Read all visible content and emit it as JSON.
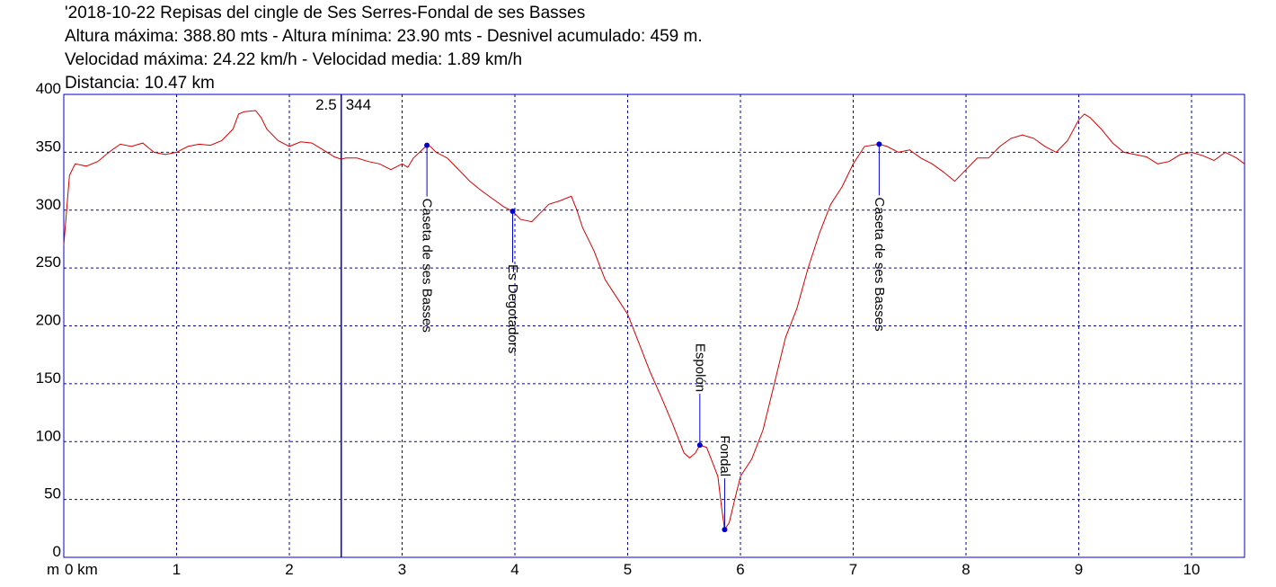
{
  "chart_data": {
    "type": "line",
    "header_lines": [
      "'2018-10-22 Repisas del cingle de Ses Serres-Fondal de ses Basses",
      "Altura máxima: 388.80 mts - Altura mínima: 23.90 mts - Desnivel acumulado: 459 m.",
      "Velocidad máxima: 24.22 km/h - Velocidad media: 1.89 km/h",
      "Distancia: 10.47 km"
    ],
    "y_label": "m",
    "xlim": [
      0,
      10.47
    ],
    "ylim": [
      0,
      400
    ],
    "xticks": [
      {
        "value": 0,
        "label": "0 km"
      },
      1,
      2,
      3,
      4,
      5,
      6,
      7,
      8,
      9,
      10
    ],
    "yticks": [
      0,
      50,
      100,
      150,
      200,
      250,
      300,
      350,
      400
    ],
    "grid": true,
    "grid_color": "#0000cc",
    "series": [
      {
        "color": "#d40000",
        "x": [
          0,
          0.05,
          0.1,
          0.2,
          0.3,
          0.4,
          0.5,
          0.6,
          0.7,
          0.75,
          0.8,
          0.9,
          1.0,
          1.1,
          1.2,
          1.3,
          1.4,
          1.5,
          1.55,
          1.6,
          1.7,
          1.75,
          1.8,
          1.9,
          2.0,
          2.1,
          2.2,
          2.3,
          2.4,
          2.46,
          2.5,
          2.6,
          2.7,
          2.8,
          2.9,
          3.0,
          3.05,
          3.1,
          3.22,
          3.25,
          3.3,
          3.4,
          3.5,
          3.6,
          3.7,
          3.8,
          3.9,
          3.98,
          4.05,
          4.15,
          4.25,
          4.3,
          4.4,
          4.5,
          4.55,
          4.6,
          4.7,
          4.8,
          4.9,
          5.0,
          5.1,
          5.2,
          5.3,
          5.4,
          5.5,
          5.55,
          5.6,
          5.64,
          5.7,
          5.8,
          5.83,
          5.86,
          5.9,
          5.95,
          6.0,
          6.1,
          6.2,
          6.3,
          6.4,
          6.5,
          6.6,
          6.7,
          6.8,
          6.9,
          7.0,
          7.1,
          7.23,
          7.3,
          7.4,
          7.5,
          7.6,
          7.7,
          7.8,
          7.9,
          8.0,
          8.1,
          8.2,
          8.3,
          8.4,
          8.5,
          8.6,
          8.7,
          8.8,
          8.9,
          9.0,
          9.05,
          9.1,
          9.2,
          9.3,
          9.4,
          9.5,
          9.6,
          9.7,
          9.8,
          9.9,
          10.0,
          10.1,
          10.2,
          10.3,
          10.4,
          10.47
        ],
        "values": [
          270,
          330,
          340,
          338,
          342,
          350,
          357,
          355,
          358,
          354,
          350,
          348,
          350,
          355,
          357,
          356,
          360,
          370,
          383,
          385,
          386,
          380,
          370,
          360,
          355,
          359,
          358,
          352,
          346,
          344,
          345,
          345,
          342,
          340,
          335,
          340,
          337,
          345,
          356,
          355,
          350,
          345,
          335,
          325,
          317,
          310,
          303,
          299,
          292,
          290,
          300,
          305,
          308,
          312,
          300,
          285,
          265,
          240,
          225,
          210,
          185,
          160,
          138,
          115,
          90,
          86,
          90,
          97,
          95,
          70,
          45,
          24,
          30,
          50,
          70,
          85,
          110,
          150,
          190,
          215,
          250,
          280,
          305,
          320,
          340,
          355,
          357,
          355,
          350,
          352,
          345,
          340,
          333,
          325,
          335,
          345,
          345,
          355,
          362,
          365,
          362,
          355,
          350,
          360,
          378,
          383,
          380,
          370,
          358,
          350,
          348,
          346,
          340,
          342,
          348,
          350,
          347,
          343,
          350,
          345,
          340
        ]
      }
    ],
    "waypoint_color": "#0000cc",
    "waypoints": [
      {
        "label": "Caseta de ses Basses",
        "x": 3.22,
        "elevation": 356
      },
      {
        "label": "Es Degotadors",
        "x": 3.98,
        "elevation": 299
      },
      {
        "label": "Espolón",
        "x": 5.64,
        "elevation": 97
      },
      {
        "label": "Fondal",
        "x": 5.86,
        "elevation": 24
      },
      {
        "label": "Caseta de ses Basses",
        "x": 7.23,
        "elevation": 357
      }
    ],
    "cursor": {
      "x": 2.46,
      "x_label": "2.5",
      "elevation": 344
    }
  }
}
